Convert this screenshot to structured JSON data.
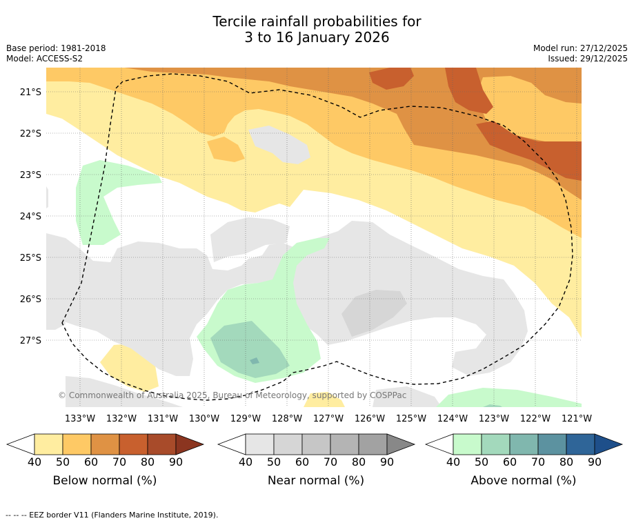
{
  "title": {
    "line1": "Tercile rainfall probabilities for",
    "line2": "3 to 16 January 2026"
  },
  "meta": {
    "base_period": "Base period: 1981-2018",
    "model": "Model: ACCESS-S2",
    "model_run": "Model run: 27/12/2025",
    "issued": "Issued: 29/12/2025"
  },
  "map": {
    "lat_labels": [
      "21°S",
      "22°S",
      "23°S",
      "24°S",
      "25°S",
      "26°S",
      "27°S"
    ],
    "lon_labels": [
      "133°W",
      "132°W",
      "131°W",
      "130°W",
      "129°W",
      "128°W",
      "127°W",
      "126°W",
      "125°W",
      "124°W",
      "123°W",
      "122°W",
      "121°W"
    ],
    "copyright": "© Commonwealth of Australia 2025, Bureau of Meteorology, supported by COSPPac"
  },
  "colorbars": [
    {
      "title": "Below normal (%)",
      "ticks": [
        "40",
        "50",
        "60",
        "70",
        "80",
        "90"
      ],
      "colors": [
        "#ffeda0",
        "#fec965",
        "#df9244",
        "#c8602e",
        "#a84b2a",
        "#8b3520"
      ]
    },
    {
      "title": "Near normal (%)",
      "ticks": [
        "40",
        "50",
        "60",
        "70",
        "80",
        "90"
      ],
      "colors": [
        "#e6e6e6",
        "#d6d6d6",
        "#c6c6c6",
        "#b4b4b4",
        "#a2a2a2",
        "#888888"
      ]
    },
    {
      "title": "Above normal (%)",
      "ticks": [
        "40",
        "50",
        "60",
        "70",
        "80",
        "90"
      ],
      "colors": [
        "#c8facc",
        "#a3d9bc",
        "#80b7ae",
        "#5c92a0",
        "#2f6598",
        "#1e4f8a"
      ]
    }
  ],
  "footnote": "--  --  -- EEZ border V11 (Flanders Marine Institute, 2019)."
}
